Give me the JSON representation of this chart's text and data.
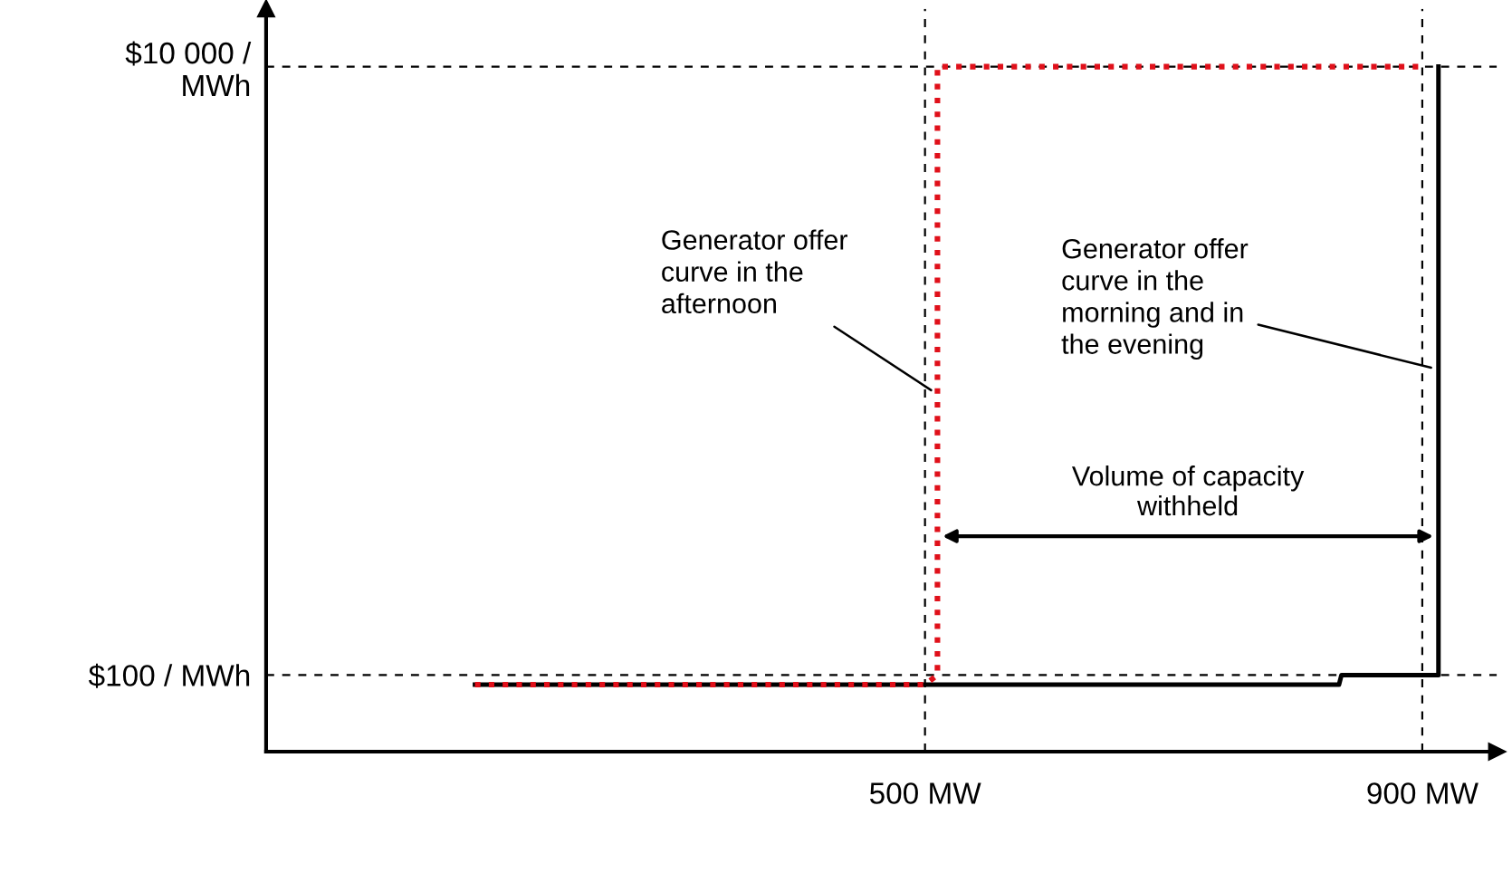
{
  "chart_data": {
    "type": "line",
    "log": "y",
    "series": [
      {
        "color": "#000000",
        "line_style": "solid",
        "x": [
          138,
          833,
          835,
          913,
          913
        ],
        "values": [
          93,
          93,
          100,
          100,
          10000
        ]
      },
      {
        "color": "#e0101a",
        "line_style": "dotted",
        "x": [
          138,
          500,
          510,
          510,
          900
        ],
        "values": [
          93,
          93,
          100,
          10000,
          10000
        ]
      }
    ],
    "xlim": [
      -30,
      960
    ],
    "ylim": [
      56,
      15500
    ],
    "xticks": [
      {
        "value": 500,
        "label": "500 MW"
      },
      {
        "value": 900,
        "label": "900 MW"
      }
    ],
    "yticks": [
      {
        "value": 100,
        "label": "$100 / MWh"
      },
      {
        "value": 10000,
        "label": "$10 000 /\nMWh"
      }
    ],
    "ref_lines": [
      {
        "axis": "y",
        "value": 100,
        "line_style": "dashed",
        "color": "#000000"
      },
      {
        "axis": "y",
        "value": 10000,
        "line_style": "dashed",
        "color": "#000000"
      },
      {
        "axis": "x",
        "value": 500,
        "line_style": "dashed",
        "color": "#000000"
      },
      {
        "axis": "x",
        "value": 900,
        "line_style": "dashed",
        "color": "#000000"
      }
    ],
    "annotations": [
      {
        "text": "Generator offer\ncurve in the\nafternoon",
        "x": 510,
        "y": 837
      },
      {
        "text": "Generator offer\ncurve in the\nmorning and in\nthe evening",
        "x": 913,
        "y": 1010
      },
      "Volume of capacity\nwithheld"
    ],
    "grid": false,
    "marker": "none"
  }
}
